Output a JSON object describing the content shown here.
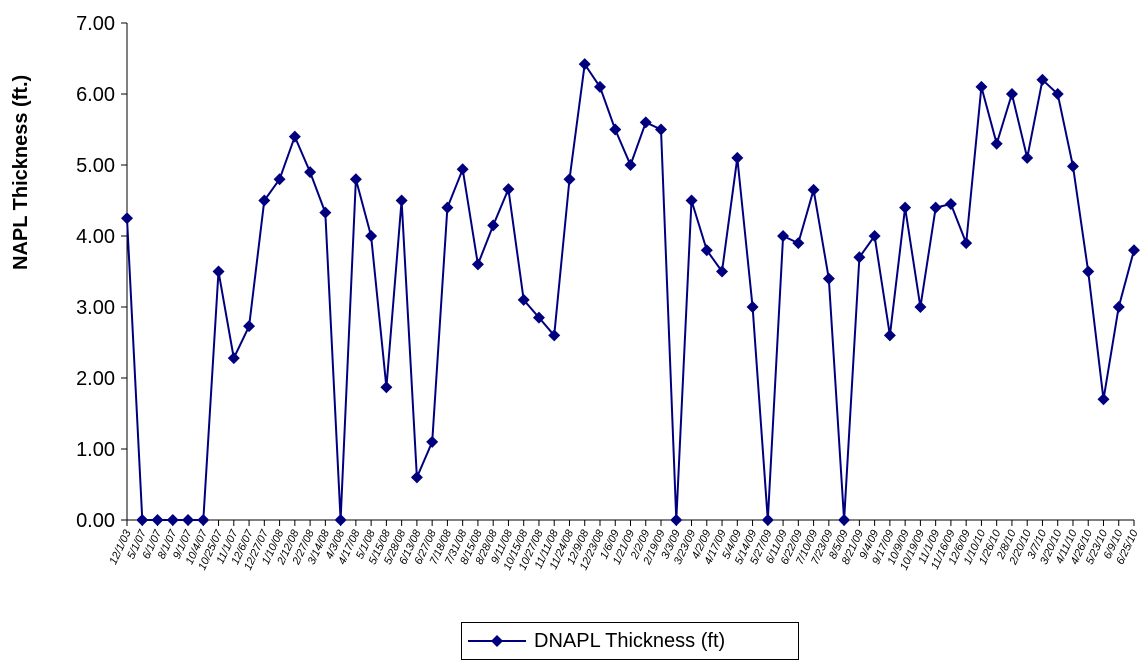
{
  "chart_data": {
    "type": "line",
    "title": "",
    "xlabel": "",
    "ylabel": "NAPL Thickness (ft.)",
    "ylim": [
      0,
      7
    ],
    "yticks": [
      "0.00",
      "1.00",
      "2.00",
      "3.00",
      "4.00",
      "5.00",
      "6.00",
      "7.00"
    ],
    "grid": false,
    "legend_position": "bottom",
    "colors": {
      "series": "#00007F",
      "axis": "#000000",
      "text": "#000000"
    },
    "categories": [
      "12/1/03",
      "5/1/07",
      "6/1/07",
      "8/1/07",
      "9/1/07",
      "10/4/07",
      "10/25/07",
      "11/1/07",
      "12/6/07",
      "12/27/07",
      "1/10/08",
      "2/12/08",
      "2/27/08",
      "3/14/08",
      "4/3/08",
      "4/17/08",
      "5/1/08",
      "5/15/08",
      "5/28/08",
      "6/13/08",
      "6/27/08",
      "7/18/08",
      "7/31/08",
      "8/15/08",
      "8/28/08",
      "9/11/08",
      "10/15/08",
      "10/27/08",
      "11/11/08",
      "11/24/08",
      "12/9/08",
      "12/23/08",
      "1/6/09",
      "1/21/09",
      "2/2/09",
      "2/19/09",
      "3/3/09",
      "3/23/09",
      "4/2/09",
      "4/17/09",
      "5/4/09",
      "5/14/09",
      "5/27/09",
      "6/11/09",
      "6/22/09",
      "7/10/09",
      "7/23/09",
      "8/5/09",
      "8/21/09",
      "9/4/09",
      "9/17/09",
      "10/9/09",
      "10/19/09",
      "11/1/09",
      "11/16/09",
      "12/6/09",
      "1/10/10",
      "1/26/10",
      "2/8/10",
      "2/20/10",
      "3/7/10",
      "3/20/10",
      "4/11/10",
      "4/26/10",
      "5/23/10",
      "6/9/10",
      "6/25/10"
    ],
    "series": [
      {
        "name": "DNAPL Thickness (ft)",
        "values": [
          4.25,
          0,
          0,
          0,
          0,
          0,
          3.5,
          2.28,
          2.73,
          4.5,
          4.8,
          5.4,
          4.9,
          4.33,
          0,
          4.8,
          4.0,
          1.87,
          4.5,
          0.6,
          1.1,
          4.4,
          4.94,
          3.6,
          4.15,
          4.66,
          3.1,
          2.85,
          2.6,
          4.8,
          6.42,
          6.1,
          5.5,
          5.0,
          5.6,
          5.5,
          0,
          4.5,
          3.8,
          3.5,
          5.1,
          3.0,
          0,
          4.0,
          3.9,
          4.65,
          3.4,
          0,
          3.7,
          4.0,
          2.6,
          4.4,
          3.0,
          4.4,
          4.45,
          3.9,
          6.1,
          5.3,
          6.0,
          5.1,
          6.2,
          6.0,
          4.98,
          3.5,
          1.7,
          3.0,
          3.8
        ]
      }
    ]
  }
}
